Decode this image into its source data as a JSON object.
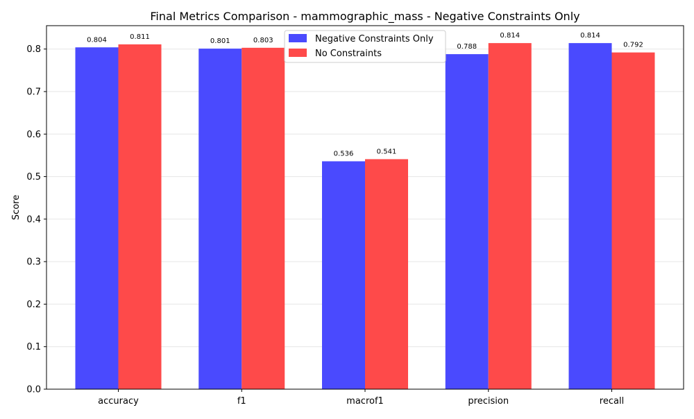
{
  "chart_data": {
    "type": "bar",
    "title": "Final Metrics Comparison - mammographic_mass - Negative Constraints Only",
    "xlabel": "",
    "ylabel": "Score",
    "categories": [
      "accuracy",
      "f1",
      "macrof1",
      "precision",
      "recall"
    ],
    "series": [
      {
        "name": "Negative Constraints Only",
        "color": "#4a4afe",
        "values": [
          0.804,
          0.801,
          0.536,
          0.788,
          0.814
        ],
        "labels": [
          "0.804",
          "0.801",
          "0.536",
          "0.788",
          "0.814"
        ]
      },
      {
        "name": "No Constraints",
        "color": "#fe4a4a",
        "values": [
          0.811,
          0.803,
          0.541,
          0.814,
          0.792
        ],
        "labels": [
          "0.811",
          "0.803",
          "0.541",
          "0.814",
          "0.792"
        ]
      }
    ],
    "ylim": [
      0,
      0.855
    ],
    "yticks": [
      0.0,
      0.1,
      0.2,
      0.3,
      0.4,
      0.5,
      0.6,
      0.7,
      0.8
    ],
    "ytick_labels": [
      "0.0",
      "0.1",
      "0.2",
      "0.3",
      "0.4",
      "0.5",
      "0.6",
      "0.7",
      "0.8"
    ],
    "grid": "y",
    "legend_position": "top-center"
  }
}
